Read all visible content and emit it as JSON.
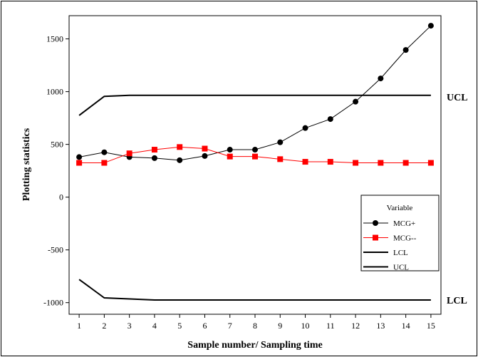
{
  "chart_data": {
    "type": "line",
    "xlabel": "Sample number/ Sampling time",
    "ylabel": "Plotting statistics",
    "x": [
      1,
      2,
      3,
      4,
      5,
      6,
      7,
      8,
      9,
      10,
      11,
      12,
      13,
      14,
      15
    ],
    "xlim": [
      0.6,
      15.4
    ],
    "ylim": [
      -1110,
      1720
    ],
    "yticks": [
      1500,
      1000,
      500,
      0,
      -500,
      -1000
    ],
    "legend_title": "Variable",
    "legend_position": "right",
    "grid": false,
    "series": [
      {
        "name": "MCG+",
        "color": "#000000",
        "marker": "circle",
        "values": [
          380,
          425,
          380,
          370,
          350,
          390,
          450,
          450,
          520,
          655,
          740,
          905,
          1125,
          1395,
          1625
        ]
      },
      {
        "name": "MCG--",
        "color": "#ff0000",
        "marker": "square",
        "values": [
          325,
          325,
          415,
          450,
          475,
          460,
          385,
          385,
          360,
          335,
          335,
          325,
          325,
          325,
          325
        ]
      },
      {
        "name": "LCL",
        "color": "#000000",
        "marker": "none",
        "values": [
          -780,
          -955,
          -965,
          -975,
          -975,
          -975,
          -975,
          -975,
          -975,
          -975,
          -975,
          -975,
          -975,
          -975,
          -975
        ]
      },
      {
        "name": "UCL",
        "color": "#000000",
        "marker": "none",
        "values": [
          775,
          955,
          965,
          965,
          965,
          965,
          965,
          965,
          965,
          965,
          965,
          965,
          965,
          965,
          965
        ]
      }
    ],
    "annotations": {
      "ucl_label": "UCL",
      "lcl_label": "LCL"
    }
  }
}
